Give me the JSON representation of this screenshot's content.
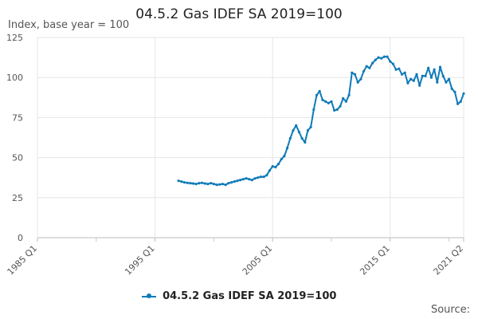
{
  "chart_data": {
    "type": "line",
    "title": "04.5.2 Gas IDEF SA 2019=100",
    "ylabel": "Index, base year = 100",
    "xlabel": "",
    "ylim": [
      0,
      125
    ],
    "yticks": [
      0,
      25,
      50,
      75,
      100,
      125
    ],
    "xlim": [
      "1985 Q1",
      "2021 Q2"
    ],
    "xtick_labels": [
      "1985 Q1",
      "1995 Q1",
      "2005 Q1",
      "2015 Q1",
      "2021 Q2"
    ],
    "grid": true,
    "legend_position": "bottom",
    "source_label": "Source:",
    "series": [
      {
        "name": "04.5.2 Gas IDEF SA 2019=100",
        "color": "#0f7ab8",
        "x": [
          "1997 Q1",
          "1997 Q2",
          "1997 Q3",
          "1997 Q4",
          "1998 Q1",
          "1998 Q2",
          "1998 Q3",
          "1998 Q4",
          "1999 Q1",
          "1999 Q2",
          "1999 Q3",
          "1999 Q4",
          "2000 Q1",
          "2000 Q2",
          "2000 Q3",
          "2000 Q4",
          "2001 Q1",
          "2001 Q2",
          "2001 Q3",
          "2001 Q4",
          "2002 Q1",
          "2002 Q2",
          "2002 Q3",
          "2002 Q4",
          "2003 Q1",
          "2003 Q2",
          "2003 Q3",
          "2003 Q4",
          "2004 Q1",
          "2004 Q2",
          "2004 Q3",
          "2004 Q4",
          "2005 Q1",
          "2005 Q2",
          "2005 Q3",
          "2005 Q4",
          "2006 Q1",
          "2006 Q2",
          "2006 Q3",
          "2006 Q4",
          "2007 Q1",
          "2007 Q2",
          "2007 Q3",
          "2007 Q4",
          "2008 Q1",
          "2008 Q2",
          "2008 Q3",
          "2008 Q4",
          "2009 Q1",
          "2009 Q2",
          "2009 Q3",
          "2009 Q4",
          "2010 Q1",
          "2010 Q2",
          "2010 Q3",
          "2010 Q4",
          "2011 Q1",
          "2011 Q2",
          "2011 Q3",
          "2011 Q4",
          "2012 Q1",
          "2012 Q2",
          "2012 Q3",
          "2012 Q4",
          "2013 Q1",
          "2013 Q2",
          "2013 Q3",
          "2013 Q4",
          "2014 Q1",
          "2014 Q2",
          "2014 Q3",
          "2014 Q4",
          "2015 Q1",
          "2015 Q2",
          "2015 Q3",
          "2015 Q4",
          "2016 Q1",
          "2016 Q2",
          "2016 Q3",
          "2016 Q4",
          "2017 Q1",
          "2017 Q2",
          "2017 Q3",
          "2017 Q4",
          "2018 Q1",
          "2018 Q2",
          "2018 Q3",
          "2018 Q4",
          "2019 Q1",
          "2019 Q2",
          "2019 Q3",
          "2019 Q4",
          "2020 Q1",
          "2020 Q2",
          "2020 Q3",
          "2020 Q4",
          "2021 Q1",
          "2021 Q2"
        ],
        "values": [
          35.5,
          35,
          34.5,
          34.2,
          34,
          33.8,
          33.5,
          34,
          34.2,
          33.8,
          33.5,
          34,
          33.5,
          33,
          33.2,
          33.5,
          33,
          34,
          34.5,
          35,
          35.5,
          36,
          36.5,
          37,
          36.5,
          36,
          37,
          37.5,
          38,
          38,
          39,
          42,
          44.5,
          44,
          46,
          49,
          51,
          56,
          62,
          67,
          70,
          66,
          62,
          59.5,
          67,
          69,
          80,
          89,
          91.5,
          86,
          85,
          84,
          85,
          79.5,
          80,
          82,
          87,
          85,
          89,
          103,
          102,
          97,
          99,
          104,
          107,
          106,
          109,
          111,
          112.5,
          112,
          113,
          113,
          110,
          108.5,
          105,
          105.5,
          102,
          103,
          96.5,
          99,
          98,
          102,
          95,
          101,
          101,
          106,
          100,
          105,
          97,
          106.5,
          101,
          97,
          99,
          93,
          91,
          83.5,
          85,
          90
        ]
      }
    ]
  }
}
